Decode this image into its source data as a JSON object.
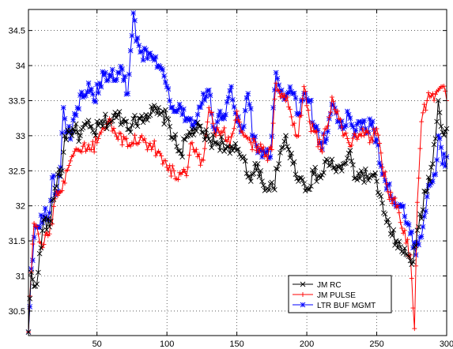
{
  "chart_data": {
    "type": "line",
    "title": "",
    "xlabel": "",
    "ylabel": "",
    "xlim": [
      1,
      300
    ],
    "ylim": [
      30.15,
      34.8
    ],
    "xticks": [
      50,
      100,
      150,
      200,
      250,
      300
    ],
    "xtick_labels": [
      "50",
      "100",
      "150",
      "200",
      "250",
      "300"
    ],
    "yticks": [
      30.5,
      31,
      31.5,
      32,
      32.5,
      33,
      33.5,
      34,
      34.5
    ],
    "ytick_labels": [
      "30.5",
      "31",
      "31.5",
      "32",
      "32.5",
      "33",
      "33.5",
      "34",
      "34.5"
    ],
    "grid": true,
    "legend_position": "lower-right",
    "series": [
      {
        "name": "JM RC",
        "color": "#000000",
        "marker": "x",
        "anchors": [
          [
            1,
            30.2
          ],
          [
            3,
            31.05
          ],
          [
            5,
            30.85
          ],
          [
            8,
            31.05
          ],
          [
            12,
            31.8
          ],
          [
            16,
            31.7
          ],
          [
            20,
            32.25
          ],
          [
            22,
            32.45
          ],
          [
            25,
            32.5
          ],
          [
            27,
            33.0
          ],
          [
            30,
            33.05
          ],
          [
            33,
            33.1
          ],
          [
            38,
            33.0
          ],
          [
            42,
            33.15
          ],
          [
            48,
            33.05
          ],
          [
            55,
            33.2
          ],
          [
            60,
            33.2
          ],
          [
            65,
            33.3
          ],
          [
            70,
            33.2
          ],
          [
            75,
            33.15
          ],
          [
            80,
            33.25
          ],
          [
            85,
            33.3
          ],
          [
            90,
            33.35
          ],
          [
            95,
            33.3
          ],
          [
            100,
            33.25
          ],
          [
            105,
            32.95
          ],
          [
            110,
            32.75
          ],
          [
            115,
            33.0
          ],
          [
            120,
            33.1
          ],
          [
            125,
            33.05
          ],
          [
            130,
            32.95
          ],
          [
            135,
            32.9
          ],
          [
            140,
            32.9
          ],
          [
            145,
            32.75
          ],
          [
            150,
            32.8
          ],
          [
            155,
            32.7
          ],
          [
            160,
            32.35
          ],
          [
            165,
            32.6
          ],
          [
            168,
            32.35
          ],
          [
            172,
            32.25
          ],
          [
            176,
            32.25
          ],
          [
            180,
            32.6
          ],
          [
            185,
            33.0
          ],
          [
            190,
            32.6
          ],
          [
            195,
            32.4
          ],
          [
            200,
            32.25
          ],
          [
            205,
            32.45
          ],
          [
            210,
            32.4
          ],
          [
            215,
            32.65
          ],
          [
            220,
            32.55
          ],
          [
            225,
            32.5
          ],
          [
            230,
            32.75
          ],
          [
            235,
            32.4
          ],
          [
            240,
            32.45
          ],
          [
            245,
            32.4
          ],
          [
            250,
            32.35
          ],
          [
            255,
            31.9
          ],
          [
            260,
            31.6
          ],
          [
            264,
            31.5
          ],
          [
            268,
            31.35
          ],
          [
            272,
            31.3
          ],
          [
            276,
            31.2
          ],
          [
            280,
            31.7
          ],
          [
            285,
            32.2
          ],
          [
            290,
            32.6
          ],
          [
            294,
            33.5
          ],
          [
            297,
            33.05
          ],
          [
            300,
            33.1
          ]
        ]
      },
      {
        "name": "JM PULSE",
        "color": "#ff0000",
        "marker": "+",
        "anchors": [
          [
            1,
            30.2
          ],
          [
            3,
            31.05
          ],
          [
            5,
            31.75
          ],
          [
            8,
            31.6
          ],
          [
            12,
            31.45
          ],
          [
            16,
            31.6
          ],
          [
            20,
            32.1
          ],
          [
            24,
            32.2
          ],
          [
            28,
            32.5
          ],
          [
            32,
            32.7
          ],
          [
            36,
            32.8
          ],
          [
            40,
            32.85
          ],
          [
            45,
            32.8
          ],
          [
            50,
            32.9
          ],
          [
            55,
            33.1
          ],
          [
            60,
            33.2
          ],
          [
            65,
            32.95
          ],
          [
            70,
            32.95
          ],
          [
            75,
            32.9
          ],
          [
            80,
            32.9
          ],
          [
            85,
            32.9
          ],
          [
            90,
            32.85
          ],
          [
            95,
            32.75
          ],
          [
            100,
            32.55
          ],
          [
            105,
            32.5
          ],
          [
            110,
            32.45
          ],
          [
            115,
            32.55
          ],
          [
            118,
            32.9
          ],
          [
            122,
            32.7
          ],
          [
            126,
            32.65
          ],
          [
            130,
            33.4
          ],
          [
            135,
            33.0
          ],
          [
            140,
            33.05
          ],
          [
            145,
            32.85
          ],
          [
            150,
            33.35
          ],
          [
            155,
            33.0
          ],
          [
            160,
            32.9
          ],
          [
            165,
            32.85
          ],
          [
            170,
            32.7
          ],
          [
            175,
            32.8
          ],
          [
            178,
            33.75
          ],
          [
            182,
            33.6
          ],
          [
            186,
            33.55
          ],
          [
            190,
            33.15
          ],
          [
            194,
            33.0
          ],
          [
            198,
            33.7
          ],
          [
            202,
            33.2
          ],
          [
            206,
            33.05
          ],
          [
            210,
            32.8
          ],
          [
            214,
            33.1
          ],
          [
            218,
            33.55
          ],
          [
            222,
            33.35
          ],
          [
            226,
            33.0
          ],
          [
            230,
            32.9
          ],
          [
            235,
            33.0
          ],
          [
            240,
            33.1
          ],
          [
            245,
            32.9
          ],
          [
            250,
            33.1
          ],
          [
            254,
            32.55
          ],
          [
            258,
            32.2
          ],
          [
            262,
            32.1
          ],
          [
            266,
            31.9
          ],
          [
            270,
            31.65
          ],
          [
            274,
            31.3
          ],
          [
            277,
            30.25
          ],
          [
            279,
            32.05
          ],
          [
            282,
            33.2
          ],
          [
            286,
            33.5
          ],
          [
            290,
            33.6
          ],
          [
            294,
            33.65
          ],
          [
            297,
            33.7
          ],
          [
            300,
            33.5
          ]
        ]
      },
      {
        "name": "LTR BUF MGMT",
        "color": "#0000ff",
        "marker": "*",
        "anchors": [
          [
            1,
            30.2
          ],
          [
            3,
            31.1
          ],
          [
            5,
            31.55
          ],
          [
            8,
            31.7
          ],
          [
            12,
            31.85
          ],
          [
            16,
            31.9
          ],
          [
            18,
            32.4
          ],
          [
            21,
            32.2
          ],
          [
            24,
            32.55
          ],
          [
            26,
            33.4
          ],
          [
            28,
            33.05
          ],
          [
            32,
            33.05
          ],
          [
            36,
            33.4
          ],
          [
            40,
            33.55
          ],
          [
            44,
            33.75
          ],
          [
            48,
            33.5
          ],
          [
            52,
            33.75
          ],
          [
            56,
            33.9
          ],
          [
            60,
            33.85
          ],
          [
            64,
            33.8
          ],
          [
            68,
            33.95
          ],
          [
            72,
            33.6
          ],
          [
            76,
            34.75
          ],
          [
            78,
            34.35
          ],
          [
            82,
            34.2
          ],
          [
            86,
            34.1
          ],
          [
            90,
            34.1
          ],
          [
            94,
            34.0
          ],
          [
            98,
            33.85
          ],
          [
            100,
            33.7
          ],
          [
            103,
            33.4
          ],
          [
            106,
            33.35
          ],
          [
            110,
            33.4
          ],
          [
            114,
            33.25
          ],
          [
            118,
            33.15
          ],
          [
            122,
            33.3
          ],
          [
            126,
            33.6
          ],
          [
            130,
            33.65
          ],
          [
            134,
            33.1
          ],
          [
            138,
            33.35
          ],
          [
            142,
            33.3
          ],
          [
            146,
            33.7
          ],
          [
            150,
            33.2
          ],
          [
            154,
            33.1
          ],
          [
            158,
            33.6
          ],
          [
            162,
            32.95
          ],
          [
            166,
            32.8
          ],
          [
            170,
            32.75
          ],
          [
            174,
            32.7
          ],
          [
            178,
            33.9
          ],
          [
            182,
            33.65
          ],
          [
            186,
            33.6
          ],
          [
            190,
            33.6
          ],
          [
            194,
            33.3
          ],
          [
            198,
            33.6
          ],
          [
            202,
            33.5
          ],
          [
            206,
            33.1
          ],
          [
            210,
            32.9
          ],
          [
            214,
            32.95
          ],
          [
            218,
            33.45
          ],
          [
            222,
            33.2
          ],
          [
            226,
            33.1
          ],
          [
            230,
            33.3
          ],
          [
            234,
            33.0
          ],
          [
            238,
            33.2
          ],
          [
            242,
            33.1
          ],
          [
            246,
            33.15
          ],
          [
            250,
            32.95
          ],
          [
            254,
            32.45
          ],
          [
            258,
            32.3
          ],
          [
            262,
            32.1
          ],
          [
            266,
            32.0
          ],
          [
            270,
            31.85
          ],
          [
            274,
            31.6
          ],
          [
            278,
            31.3
          ],
          [
            281,
            31.55
          ],
          [
            284,
            31.85
          ],
          [
            288,
            32.3
          ],
          [
            292,
            32.45
          ],
          [
            294,
            33.0
          ],
          [
            297,
            32.6
          ],
          [
            300,
            32.7
          ]
        ]
      }
    ]
  }
}
